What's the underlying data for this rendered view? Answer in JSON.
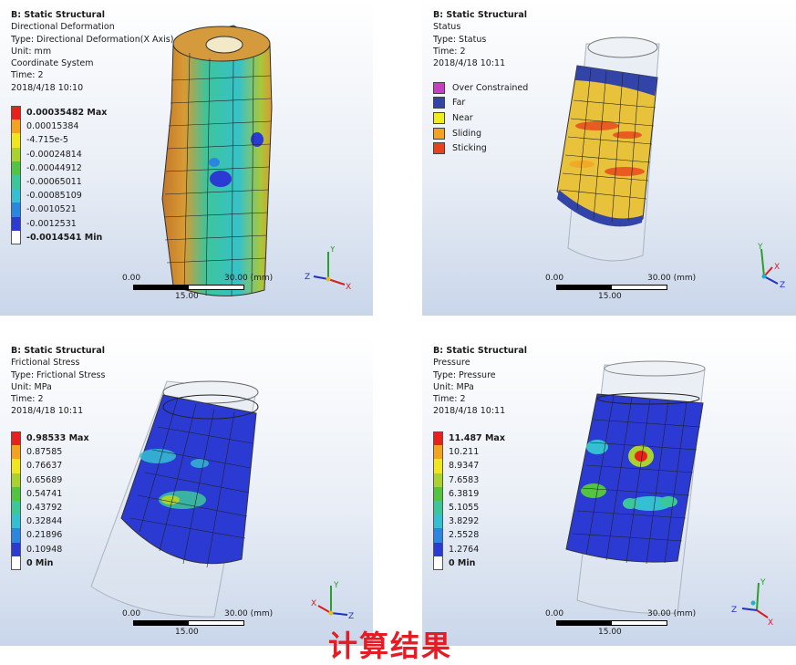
{
  "panels": [
    {
      "title": "B: Static Structural",
      "lines": [
        "Directional Deformation",
        "Type: Directional Deformation(X Axis)",
        "Unit: mm",
        "Coordinate System",
        "Time: 2",
        "2018/4/18 10:10"
      ],
      "legend": [
        {
          "label": "0.00035482 Max",
          "color": "#e8211b",
          "bold": true
        },
        {
          "label": "0.00015384",
          "color": "#f5a21e",
          "bold": false
        },
        {
          "label": "-4.715e-5",
          "color": "#f1e61d",
          "bold": false
        },
        {
          "label": "-0.00024814",
          "color": "#a9d22e",
          "bold": false
        },
        {
          "label": "-0.00044912",
          "color": "#52c441",
          "bold": false
        },
        {
          "label": "-0.00065011",
          "color": "#3cc79a",
          "bold": false
        },
        {
          "label": "-0.00085109",
          "color": "#35bfd2",
          "bold": false
        },
        {
          "label": "-0.0010521",
          "color": "#2a86e0",
          "bold": false
        },
        {
          "label": "-0.0012531",
          "color": "#2b3ad3",
          "bold": false
        },
        {
          "label": "-0.0014541 Min",
          "color": "#ffffff",
          "bold": true
        }
      ],
      "scale": {
        "start": "0.00",
        "end": "30.00 (mm)",
        "mid": "15.00"
      }
    },
    {
      "title": "B: Static Structural",
      "lines": [
        "Status",
        "Type: Status",
        "Time: 2",
        "2018/4/18 10:11"
      ],
      "status_legend": [
        {
          "label": "Over Constrained",
          "color": "#c53fbf"
        },
        {
          "label": "Far",
          "color": "#3344a8"
        },
        {
          "label": "Near",
          "color": "#f0ec1d"
        },
        {
          "label": "Sliding",
          "color": "#f5a21e"
        },
        {
          "label": "Sticking",
          "color": "#e8421b"
        }
      ],
      "scale": {
        "start": "0.00",
        "end": "30.00 (mm)",
        "mid": "15.00"
      }
    },
    {
      "title": "B: Static Structural",
      "lines": [
        "Frictional Stress",
        "Type: Frictional Stress",
        "Unit: MPa",
        "Time: 2",
        "2018/4/18 10:11"
      ],
      "legend": [
        {
          "label": "0.98533 Max",
          "color": "#e8211b",
          "bold": true
        },
        {
          "label": "0.87585",
          "color": "#f5a21e",
          "bold": false
        },
        {
          "label": "0.76637",
          "color": "#f1e61d",
          "bold": false
        },
        {
          "label": "0.65689",
          "color": "#a9d22e",
          "bold": false
        },
        {
          "label": "0.54741",
          "color": "#52c441",
          "bold": false
        },
        {
          "label": "0.43792",
          "color": "#3cc79a",
          "bold": false
        },
        {
          "label": "0.32844",
          "color": "#35bfd2",
          "bold": false
        },
        {
          "label": "0.21896",
          "color": "#2a86e0",
          "bold": false
        },
        {
          "label": "0.10948",
          "color": "#2b3ad3",
          "bold": false
        },
        {
          "label": "0 Min",
          "color": "#ffffff",
          "bold": true
        }
      ],
      "scale": {
        "start": "0.00",
        "end": "30.00 (mm)",
        "mid": "15.00"
      }
    },
    {
      "title": "B: Static Structural",
      "lines": [
        "Pressure",
        "Type: Pressure",
        "Unit: MPa",
        "Time: 2",
        "2018/4/18 10:11"
      ],
      "legend": [
        {
          "label": "11.487 Max",
          "color": "#e8211b",
          "bold": true
        },
        {
          "label": "10.211",
          "color": "#f5a21e",
          "bold": false
        },
        {
          "label": "8.9347",
          "color": "#f1e61d",
          "bold": false
        },
        {
          "label": "7.6583",
          "color": "#a9d22e",
          "bold": false
        },
        {
          "label": "6.3819",
          "color": "#52c441",
          "bold": false
        },
        {
          "label": "5.1055",
          "color": "#3cc79a",
          "bold": false
        },
        {
          "label": "3.8292",
          "color": "#35bfd2",
          "bold": false
        },
        {
          "label": "2.5528",
          "color": "#2a86e0",
          "bold": false
        },
        {
          "label": "1.2764",
          "color": "#2b3ad3",
          "bold": false
        },
        {
          "label": "0 Min",
          "color": "#ffffff",
          "bold": true
        }
      ],
      "scale": {
        "start": "0.00",
        "end": "30.00 (mm)",
        "mid": "15.00"
      }
    }
  ],
  "axis_labels": {
    "x": "X",
    "y": "Y",
    "z": "Z"
  },
  "caption": "计算结果"
}
